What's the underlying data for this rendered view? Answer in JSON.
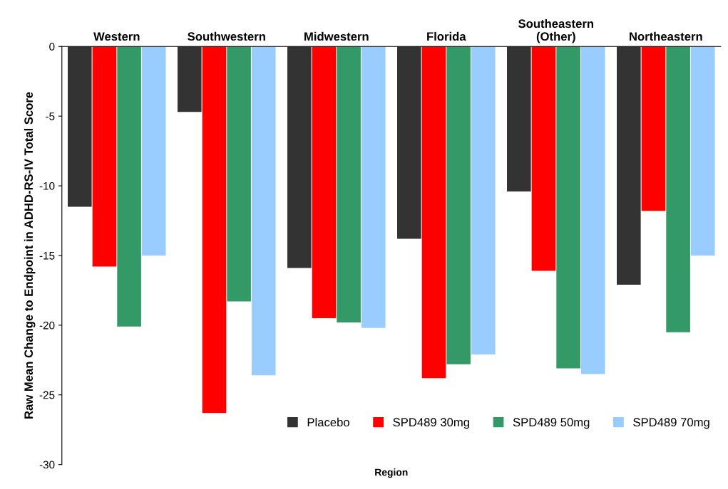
{
  "chart_data": {
    "type": "bar",
    "xlabel": "Region",
    "ylabel": "Raw Mean Change to Endpoint in ADHD-RS-IV Total Score",
    "categories": [
      "Western",
      "Southwestern",
      "Midwestern",
      "Florida",
      "Southeastern\n(Other)",
      "Northeastern"
    ],
    "series": [
      {
        "name": "Placebo",
        "color": "#333333",
        "values": [
          -11.5,
          -4.7,
          -15.9,
          -13.8,
          -10.4,
          -17.1
        ]
      },
      {
        "name": "SPD489 30mg",
        "color": "#ff0000",
        "values": [
          -15.8,
          -26.3,
          -19.5,
          -23.8,
          -16.1,
          -11.8
        ]
      },
      {
        "name": "SPD489 50mg",
        "color": "#339966",
        "values": [
          -20.1,
          -18.3,
          -19.8,
          -22.8,
          -23.1,
          -20.5
        ]
      },
      {
        "name": "SPD489 70mg",
        "color": "#99ccff",
        "values": [
          -15.0,
          -23.6,
          -20.2,
          -22.1,
          -23.5,
          -15.0
        ]
      }
    ],
    "ylim": [
      -30,
      0
    ],
    "yticks": [
      0,
      -5,
      -10,
      -15,
      -20,
      -25,
      -30
    ],
    "grid": false,
    "legend": "bottom right"
  }
}
